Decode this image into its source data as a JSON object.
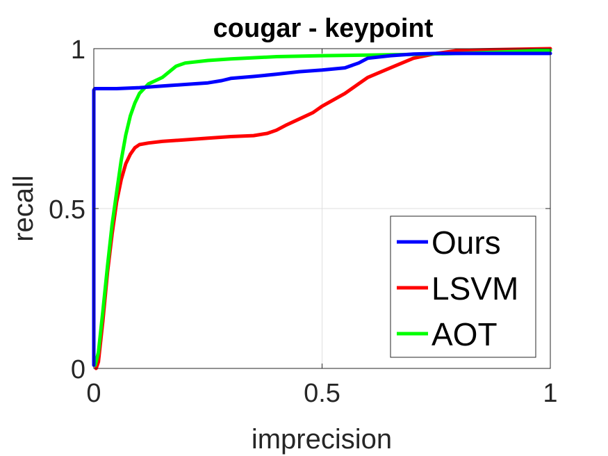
{
  "chart_data": {
    "type": "line",
    "title": "cougar - keypoint",
    "xlabel": "imprecision",
    "ylabel": "recall",
    "xlim": [
      0,
      1
    ],
    "ylim": [
      0,
      1
    ],
    "xticks": [
      0,
      0.5,
      1
    ],
    "xtick_labels": [
      "0",
      "0.5",
      "1"
    ],
    "yticks": [
      0,
      0.5,
      1
    ],
    "ytick_labels": [
      "0",
      "0.5",
      "1"
    ],
    "grid": true,
    "legend_position": "bottom-right",
    "series": [
      {
        "name": "Ours",
        "color": "#0000ff",
        "x": [
          0,
          0,
          0.002,
          0.05,
          0.1,
          0.15,
          0.2,
          0.25,
          0.28,
          0.3,
          0.35,
          0.4,
          0.45,
          0.5,
          0.55,
          0.58,
          0.6,
          0.65,
          0.7,
          0.75,
          0.8,
          0.9,
          1.0
        ],
        "y": [
          0.01,
          0.87,
          0.875,
          0.875,
          0.878,
          0.883,
          0.888,
          0.893,
          0.9,
          0.907,
          0.913,
          0.92,
          0.928,
          0.933,
          0.94,
          0.955,
          0.97,
          0.978,
          0.983,
          0.985,
          0.985,
          0.985,
          0.985
        ]
      },
      {
        "name": "LSVM",
        "color": "#ff0000",
        "x": [
          0.005,
          0.01,
          0.02,
          0.03,
          0.04,
          0.05,
          0.06,
          0.07,
          0.08,
          0.09,
          0.1,
          0.12,
          0.15,
          0.2,
          0.25,
          0.3,
          0.35,
          0.38,
          0.4,
          0.42,
          0.45,
          0.48,
          0.5,
          0.55,
          0.58,
          0.6,
          0.65,
          0.7,
          0.75,
          0.8,
          1.0
        ],
        "y": [
          0.0,
          0.02,
          0.15,
          0.3,
          0.42,
          0.52,
          0.59,
          0.64,
          0.67,
          0.69,
          0.7,
          0.705,
          0.71,
          0.715,
          0.72,
          0.725,
          0.728,
          0.735,
          0.745,
          0.76,
          0.78,
          0.8,
          0.82,
          0.86,
          0.89,
          0.91,
          0.94,
          0.97,
          0.985,
          0.995,
          1.0
        ]
      },
      {
        "name": "AOT",
        "color": "#00ff00",
        "x": [
          0.003,
          0.01,
          0.02,
          0.03,
          0.04,
          0.05,
          0.06,
          0.07,
          0.08,
          0.09,
          0.1,
          0.12,
          0.15,
          0.18,
          0.2,
          0.25,
          0.3,
          0.4,
          0.5,
          0.6,
          0.7,
          0.8,
          0.9,
          1.0
        ],
        "y": [
          0.01,
          0.05,
          0.18,
          0.32,
          0.45,
          0.55,
          0.65,
          0.73,
          0.79,
          0.83,
          0.86,
          0.89,
          0.91,
          0.945,
          0.955,
          0.963,
          0.968,
          0.975,
          0.978,
          0.98,
          0.982,
          0.985,
          0.99,
          0.995
        ]
      }
    ]
  }
}
